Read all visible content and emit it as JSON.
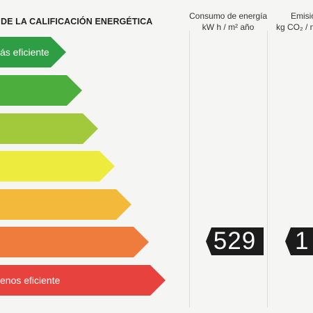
{
  "heading": "DE LA CALIFICACIÓN ENERGÉTICA",
  "columns": {
    "consumption": {
      "line1": "Consumo de energía",
      "line2": "kW h / m² año"
    },
    "emissions": {
      "line1": "Emisio",
      "line2": "kg CO₂ / m"
    }
  },
  "bars": [
    {
      "label": "ás eficiente",
      "color": "#2e9e44"
    },
    {
      "label": "",
      "color": "#4cae3c"
    },
    {
      "label": "",
      "color": "#a2c93c"
    },
    {
      "label": "",
      "color": "#eceb3e"
    },
    {
      "label": "",
      "color": "#f2b93a"
    },
    {
      "label": "",
      "color": "#ef7b3c"
    },
    {
      "label": "enos eficiente",
      "color": "#e8423f"
    }
  ],
  "values": {
    "consumption": "529",
    "emissions": "1"
  }
}
